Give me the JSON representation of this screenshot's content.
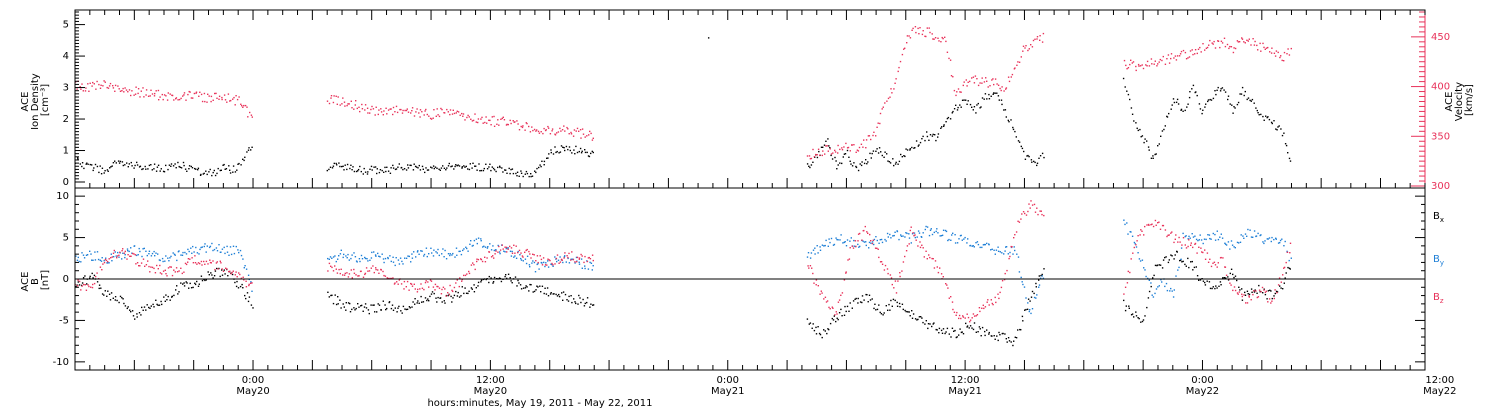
{
  "chart_data": [
    {
      "type": "scatter",
      "panel": "top",
      "ylabel_left": [
        "ACE",
        "Ion Density",
        "[cm⁻³]"
      ],
      "ylabel_right": [
        "ACE",
        "Velocity",
        "[km/s]"
      ],
      "y_left_range": [
        0,
        5.4
      ],
      "y_left_ticks": [
        "0",
        "1",
        "2",
        "3",
        "4",
        "5"
      ],
      "y_right_range": [
        300,
        475
      ],
      "y_right_ticks": [
        "300",
        "350",
        "400",
        "450"
      ],
      "right_axis_color": "#e8325a",
      "grid": false,
      "series": [
        {
          "color": "#000000",
          "axis": "left",
          "segments": [
            {
              "x": [
                0,
                2,
                4,
                6,
                8,
                10,
                12,
                14,
                16,
                18,
                20,
                22,
                24,
                26,
                28,
                30,
                32,
                34,
                36
              ],
              "y": [
                0.7,
                0.5,
                0.5,
                0.3,
                0.7,
                0.5,
                0.6,
                0.4,
                0.5,
                0.4,
                0.6,
                0.5,
                0.4,
                0.3,
                0.3,
                0.5,
                0.4,
                0.7,
                1.3
              ]
            },
            {
              "x": [
                51,
                54,
                57,
                60,
                63,
                66,
                69,
                72,
                75,
                78,
                81,
                84,
                87,
                90,
                93,
                96,
                99,
                102,
                105
              ],
              "y": [
                0.5,
                0.5,
                0.4,
                0.4,
                0.4,
                0.5,
                0.5,
                0.4,
                0.5,
                0.5,
                0.5,
                0.5,
                0.4,
                0.3,
                0.3,
                1.0,
                1.1,
                1.0,
                0.9
              ]
            },
            {
              "x": [
                148,
                150,
                152,
                154,
                156,
                158,
                160,
                162,
                164,
                166,
                168,
                170,
                172,
                174,
                176,
                178,
                180,
                182,
                184,
                186,
                188,
                190,
                192,
                194,
                196
              ],
              "y": [
                0.5,
                0.8,
                1.3,
                0.5,
                0.9,
                0.4,
                0.7,
                1.1,
                0.8,
                0.6,
                1.0,
                1.2,
                1.5,
                1.4,
                1.9,
                2.4,
                2.6,
                2.3,
                2.7,
                2.9,
                2.3,
                1.6,
                0.8,
                0.6,
                0.9
              ]
            },
            {
              "x": [
                212,
                214,
                216,
                218,
                220,
                222,
                224,
                226,
                228,
                230,
                232,
                234,
                236,
                238,
                240,
                242,
                244,
                246
              ],
              "y": [
                3.2,
                2.0,
                1.4,
                0.7,
                1.8,
                2.7,
                2.3,
                3.0,
                2.2,
                2.8,
                3.1,
                2.3,
                2.9,
                2.6,
                2.1,
                1.9,
                1.6,
                0.6
              ]
            }
          ]
        },
        {
          "color": "#e8325a",
          "axis": "right",
          "segments": [
            {
              "x": [
                0,
                3,
                6,
                9,
                12,
                15,
                18,
                21,
                24,
                27,
                30,
                33,
                36
              ],
              "y": [
                403,
                400,
                402,
                398,
                396,
                393,
                391,
                390,
                392,
                389,
                389,
                386,
                369
              ]
            },
            {
              "x": [
                51,
                54,
                57,
                60,
                63,
                66,
                69,
                72,
                75,
                78,
                81,
                84,
                87,
                90,
                93,
                96,
                99,
                102,
                105
              ],
              "y": [
                389,
                386,
                381,
                377,
                376,
                377,
                374,
                373,
                375,
                372,
                368,
                366,
                365,
                362,
                359,
                357,
                356,
                354,
                350
              ]
            },
            {
              "x": [
                148,
                150,
                152,
                154,
                156,
                158,
                160,
                162,
                164,
                166,
                168,
                170,
                172,
                174,
                176,
                178,
                180,
                182,
                184,
                186,
                188,
                190,
                192,
                194,
                196
              ],
              "y": [
                330,
                335,
                338,
                336,
                340,
                338,
                345,
                358,
                385,
                410,
                448,
                458,
                456,
                452,
                446,
                393,
                403,
                407,
                405,
                404,
                400,
                420,
                440,
                446,
                450
              ]
            },
            {
              "x": [
                212,
                214,
                216,
                218,
                220,
                222,
                224,
                226,
                228,
                230,
                232,
                234,
                236,
                238,
                240,
                242,
                244,
                246
              ],
              "y": [
                423,
                422,
                420,
                425,
                427,
                430,
                432,
                436,
                440,
                443,
                445,
                440,
                448,
                446,
                440,
                436,
                430,
                438
              ]
            }
          ]
        }
      ]
    },
    {
      "type": "scatter",
      "panel": "bottom",
      "ylabel": [
        "ACE",
        "B",
        "[nT]"
      ],
      "ylim": [
        -10.5,
        10.5
      ],
      "y_ticks": [
        "-10",
        "-5",
        "0",
        "5",
        "10"
      ],
      "zero_line": true,
      "grid": false,
      "series": [
        {
          "name": "Bx",
          "color": "#000000",
          "segments": [
            {
              "x": [
                0,
                3,
                6,
                9,
                12,
                15,
                18,
                21,
                24,
                27,
                30,
                33,
                36
              ],
              "y": [
                -1.0,
                0.5,
                -1.5,
                -2.5,
                -4.5,
                -3.0,
                -2.5,
                -1.0,
                -0.5,
                0.5,
                1.0,
                -0.5,
                -3.5
              ]
            },
            {
              "x": [
                51,
                54,
                57,
                60,
                63,
                66,
                69,
                72,
                75,
                78,
                81,
                84,
                87,
                90,
                93,
                96,
                99,
                102,
                105
              ],
              "y": [
                -2.0,
                -3.0,
                -3.5,
                -3.5,
                -3.0,
                -3.5,
                -2.5,
                -2.0,
                -2.5,
                -1.5,
                -1.0,
                0.0,
                0.5,
                -0.5,
                -1.0,
                -1.5,
                -2.0,
                -2.5,
                -3.0
              ]
            },
            {
              "x": [
                148,
                151,
                154,
                157,
                160,
                163,
                166,
                169,
                172,
                175,
                178,
                181,
                184,
                187,
                190,
                193,
                196
              ],
              "y": [
                -5.0,
                -6.5,
                -4.5,
                -3.0,
                -2.0,
                -4.0,
                -2.5,
                -4.0,
                -5.5,
                -6.0,
                -6.5,
                -5.5,
                -6.5,
                -7.0,
                -7.5,
                -2.0,
                1.0
              ]
            },
            {
              "x": [
                212,
                214,
                216,
                218,
                220,
                222,
                224,
                226,
                228,
                230,
                232,
                234,
                236,
                238,
                240,
                242,
                244,
                246
              ],
              "y": [
                -3.0,
                -4.0,
                -5.0,
                1.0,
                2.0,
                3.0,
                2.5,
                1.5,
                -0.5,
                -1.0,
                0.0,
                1.0,
                -2.0,
                -1.0,
                -1.5,
                -2.0,
                -0.5,
                2.0
              ]
            }
          ]
        },
        {
          "name": "By",
          "color": "#1e7fd6",
          "segments": [
            {
              "x": [
                0,
                3,
                6,
                9,
                12,
                15,
                18,
                21,
                24,
                27,
                30,
                33,
                36
              ],
              "y": [
                2.5,
                3.0,
                2.5,
                3.0,
                3.5,
                3.0,
                2.5,
                3.0,
                3.5,
                4.0,
                3.5,
                3.5,
                -1.5
              ]
            },
            {
              "x": [
                51,
                54,
                57,
                60,
                63,
                66,
                69,
                72,
                75,
                78,
                81,
                84,
                87,
                90,
                93,
                96,
                99,
                102,
                105
              ],
              "y": [
                2.5,
                3.0,
                2.5,
                3.0,
                2.5,
                2.0,
                3.0,
                3.5,
                3.0,
                3.5,
                4.5,
                4.0,
                3.5,
                3.0,
                1.5,
                2.0,
                2.5,
                2.0,
                1.5
              ]
            },
            {
              "x": [
                148,
                151,
                154,
                157,
                160,
                163,
                166,
                169,
                172,
                175,
                178,
                181,
                184,
                187,
                190,
                193,
                196
              ],
              "y": [
                3.0,
                4.0,
                5.0,
                4.5,
                4.0,
                5.0,
                5.5,
                5.0,
                6.0,
                5.5,
                5.0,
                4.5,
                4.0,
                3.5,
                3.5,
                -4.0,
                1.0
              ]
            },
            {
              "x": [
                212,
                214,
                216,
                218,
                220,
                222,
                224,
                226,
                228,
                230,
                232,
                234,
                236,
                238,
                240,
                242,
                244,
                246
              ],
              "y": [
                7.0,
                4.5,
                2.0,
                -2.0,
                0.0,
                -2.0,
                5.0,
                5.5,
                4.5,
                5.5,
                5.0,
                4.0,
                5.5,
                5.5,
                5.0,
                4.5,
                5.0,
                2.0
              ]
            }
          ]
        },
        {
          "name": "Bz",
          "color": "#e8325a",
          "segments": [
            {
              "x": [
                0,
                3,
                6,
                9,
                12,
                15,
                18,
                21,
                24,
                27,
                30,
                33,
                36
              ],
              "y": [
                -0.5,
                -1.0,
                2.0,
                3.5,
                2.5,
                1.5,
                1.0,
                1.0,
                2.5,
                2.0,
                1.5,
                0.5,
                -1.0
              ]
            },
            {
              "x": [
                51,
                54,
                57,
                60,
                63,
                66,
                69,
                72,
                75,
                78,
                81,
                84,
                87,
                90,
                93,
                96,
                99,
                102,
                105
              ],
              "y": [
                1.5,
                1.0,
                0.5,
                1.5,
                0.5,
                -0.5,
                -1.0,
                -0.5,
                -1.5,
                0.0,
                2.0,
                3.0,
                4.0,
                3.5,
                2.5,
                2.0,
                3.0,
                2.5,
                2.5
              ]
            },
            {
              "x": [
                148,
                151,
                154,
                157,
                160,
                163,
                166,
                169,
                172,
                175,
                178,
                181,
                184,
                187,
                190,
                193,
                196
              ],
              "y": [
                2.0,
                -2.0,
                -4.0,
                4.0,
                6.0,
                2.0,
                -1.0,
                6.0,
                3.0,
                1.0,
                -4.0,
                -5.0,
                -3.0,
                -2.0,
                6.0,
                9.0,
                8.0
              ]
            },
            {
              "x": [
                212,
                214,
                216,
                218,
                220,
                222,
                224,
                226,
                228,
                230,
                232,
                234,
                236,
                238,
                240,
                242,
                244,
                246
              ],
              "y": [
                -2.0,
                4.0,
                6.0,
                7.0,
                6.0,
                5.0,
                4.5,
                4.0,
                3.5,
                1.5,
                2.5,
                -1.0,
                -2.5,
                -2.0,
                -1.5,
                -2.5,
                0.5,
                4.5
              ]
            }
          ]
        }
      ]
    }
  ],
  "legend": {
    "bx": {
      "text": "B",
      "sub": "x",
      "color": "#000000"
    },
    "by": {
      "text": "B",
      "sub": "y",
      "color": "#1e7fd6"
    },
    "bz": {
      "text": "B",
      "sub": "z",
      "color": "#e8325a"
    }
  },
  "x_axis": {
    "range_hours": [
      0,
      273
    ],
    "ticks": [
      {
        "x": 36,
        "time": "0:00",
        "date": "May20"
      },
      {
        "x": 84,
        "time": "12:00",
        "date": "May20"
      },
      {
        "x": 132,
        "time": "0:00",
        "date": "May21"
      },
      {
        "x": 180,
        "time": "12:00",
        "date": "May21"
      },
      {
        "x": 228,
        "time": "0:00",
        "date": "May22"
      },
      {
        "x": 276,
        "time": "12:00",
        "date": "May22"
      }
    ],
    "label": "hours:minutes, May 19, 2011 - May 22, 2011"
  },
  "stray_point": {
    "x": 128,
    "y": 4.6
  }
}
